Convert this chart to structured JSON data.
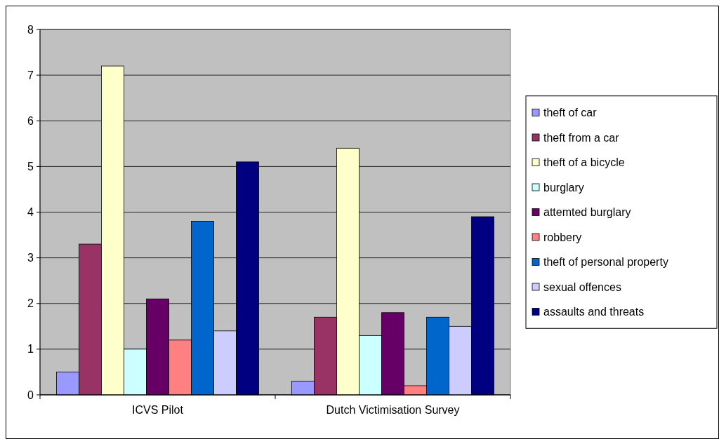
{
  "chart_data": {
    "type": "bar",
    "categories": [
      "ICVS Pilot",
      "Dutch Victimisation Survey"
    ],
    "series": [
      {
        "name": "theft of car",
        "color": "#9999ff",
        "values": [
          0.5,
          0.3
        ]
      },
      {
        "name": "theft from a car",
        "color": "#993366",
        "values": [
          3.3,
          1.7
        ]
      },
      {
        "name": "theft of a bicycle",
        "color": "#ffffcc",
        "values": [
          7.2,
          5.4
        ]
      },
      {
        "name": "burglary",
        "color": "#ccffff",
        "values": [
          1.0,
          1.3
        ]
      },
      {
        "name": "attemted burglary",
        "color": "#660066",
        "values": [
          2.1,
          1.8
        ]
      },
      {
        "name": "robbery",
        "color": "#ff8080",
        "values": [
          1.2,
          0.2
        ]
      },
      {
        "name": "theft of personal property",
        "color": "#0066cc",
        "values": [
          3.8,
          1.7
        ]
      },
      {
        "name": "sexual offences",
        "color": "#ccccff",
        "values": [
          1.4,
          1.5
        ]
      },
      {
        "name": "assaults and threats",
        "color": "#000080",
        "values": [
          5.1,
          3.9
        ]
      }
    ],
    "ylim": [
      0,
      8
    ],
    "yticks": [
      0,
      1,
      2,
      3,
      4,
      5,
      6,
      7,
      8
    ],
    "grid": "y",
    "legend": "right"
  }
}
